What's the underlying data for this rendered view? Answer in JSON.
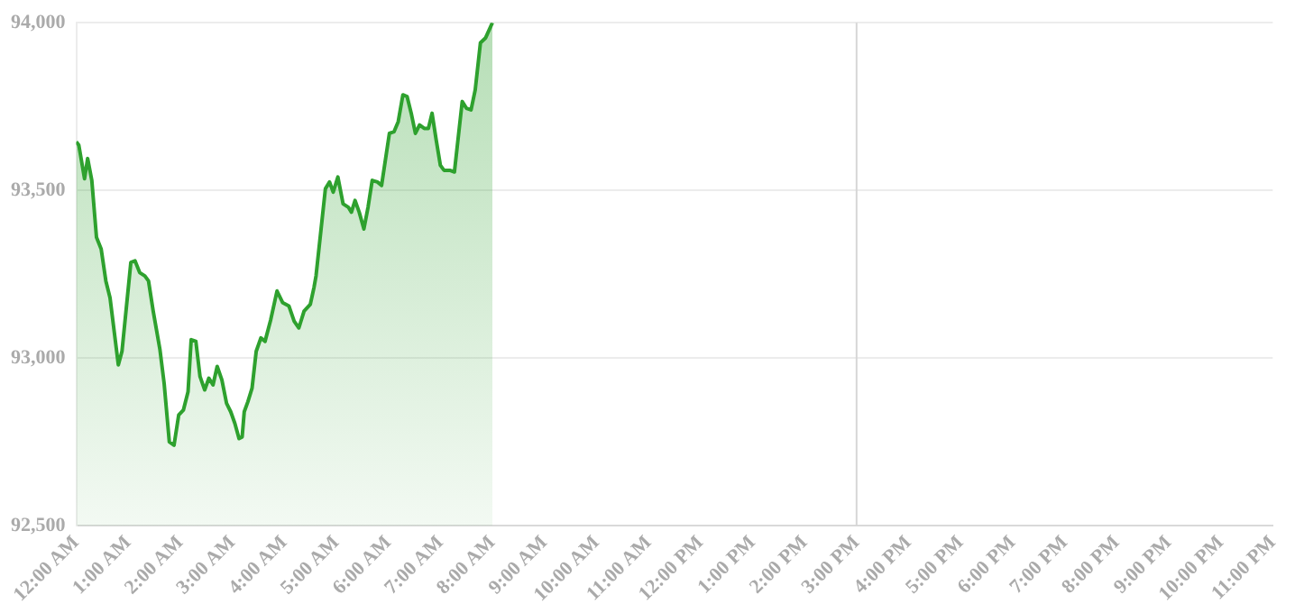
{
  "chart_data": {
    "type": "area",
    "x": [
      0,
      0.05,
      0.16,
      0.22,
      0.3,
      0.39,
      0.48,
      0.57,
      0.65,
      0.81,
      0.88,
      1.05,
      1.13,
      1.22,
      1.32,
      1.39,
      1.48,
      1.61,
      1.69,
      1.79,
      1.88,
      1.97,
      2.06,
      2.15,
      2.21,
      2.3,
      2.38,
      2.47,
      2.55,
      2.63,
      2.71,
      2.8,
      2.89,
      2.97,
      3.05,
      3.13,
      3.19,
      3.23,
      3.3,
      3.38,
      3.46,
      3.55,
      3.63,
      3.74,
      3.86,
      3.97,
      4.09,
      4.19,
      4.28,
      4.38,
      4.5,
      4.57,
      4.61,
      4.79,
      4.87,
      4.94,
      5.03,
      5.13,
      5.23,
      5.29,
      5.36,
      5.44,
      5.53,
      5.61,
      5.69,
      5.79,
      5.87,
      6.02,
      6.11,
      6.19,
      6.28,
      6.36,
      6.44,
      6.52,
      6.6,
      6.69,
      6.77,
      6.84,
      6.92,
      7,
      7.07,
      7.18,
      7.27,
      7.42,
      7.5,
      7.59,
      7.67,
      7.77,
      7.87,
      8
    ],
    "series": [
      {
        "color": "#2ea12e",
        "values": [
          93645,
          93635,
          93535,
          93595,
          93530,
          93360,
          93325,
          93230,
          93180,
          92980,
          93020,
          93285,
          93290,
          93255,
          93245,
          93230,
          93140,
          93025,
          92925,
          92750,
          92740,
          92830,
          92845,
          92900,
          93055,
          93050,
          92945,
          92905,
          92940,
          92920,
          92975,
          92935,
          92865,
          92840,
          92805,
          92760,
          92765,
          92840,
          92870,
          92910,
          93020,
          93060,
          93050,
          93115,
          93200,
          93165,
          93155,
          93110,
          93090,
          93140,
          93160,
          93210,
          93245,
          93505,
          93525,
          93495,
          93540,
          93460,
          93450,
          93435,
          93470,
          93435,
          93385,
          93450,
          93530,
          93525,
          93515,
          93670,
          93675,
          93705,
          93785,
          93780,
          93730,
          93670,
          93695,
          93685,
          93685,
          93730,
          93650,
          93575,
          93560,
          93560,
          93555,
          93765,
          93745,
          93740,
          93800,
          93940,
          93955,
          94000
        ]
      }
    ],
    "xlim": [
      0,
      23
    ],
    "xticks": [
      {
        "value": 0,
        "label": "12:00 AM"
      },
      {
        "value": 1,
        "label": "1:00 AM"
      },
      {
        "value": 2,
        "label": "2:00 AM"
      },
      {
        "value": 3,
        "label": "3:00 AM"
      },
      {
        "value": 4,
        "label": "4:00 AM"
      },
      {
        "value": 5,
        "label": "5:00 AM"
      },
      {
        "value": 6,
        "label": "6:00 AM"
      },
      {
        "value": 7,
        "label": "7:00 AM"
      },
      {
        "value": 8,
        "label": "8:00 AM"
      },
      {
        "value": 9,
        "label": "9:00 AM"
      },
      {
        "value": 10,
        "label": "10:00 AM"
      },
      {
        "value": 11,
        "label": "11:00 AM"
      },
      {
        "value": 12,
        "label": "12:00 PM"
      },
      {
        "value": 13,
        "label": "1:00 PM"
      },
      {
        "value": 14,
        "label": "2:00 PM"
      },
      {
        "value": 15,
        "label": "3:00 PM"
      },
      {
        "value": 16,
        "label": "4:00 PM"
      },
      {
        "value": 17,
        "label": "5:00 PM"
      },
      {
        "value": 18,
        "label": "6:00 PM"
      },
      {
        "value": 19,
        "label": "7:00 PM"
      },
      {
        "value": 20,
        "label": "8:00 PM"
      },
      {
        "value": 21,
        "label": "9:00 PM"
      },
      {
        "value": 22,
        "label": "10:00 PM"
      },
      {
        "value": 23,
        "label": "11:00 PM"
      }
    ],
    "ylim": [
      92500,
      94000
    ],
    "yticks": [
      {
        "value": 92500,
        "label": "92,500"
      },
      {
        "value": 93000,
        "label": "93,000"
      },
      {
        "value": 93500,
        "label": "93,500"
      },
      {
        "value": 94000,
        "label": "94,000"
      }
    ],
    "ref_lines": [
      {
        "axis": "x",
        "value": 15,
        "color": "#d6d6d6"
      }
    ],
    "grid": "y",
    "legend": false,
    "marker": "none"
  }
}
